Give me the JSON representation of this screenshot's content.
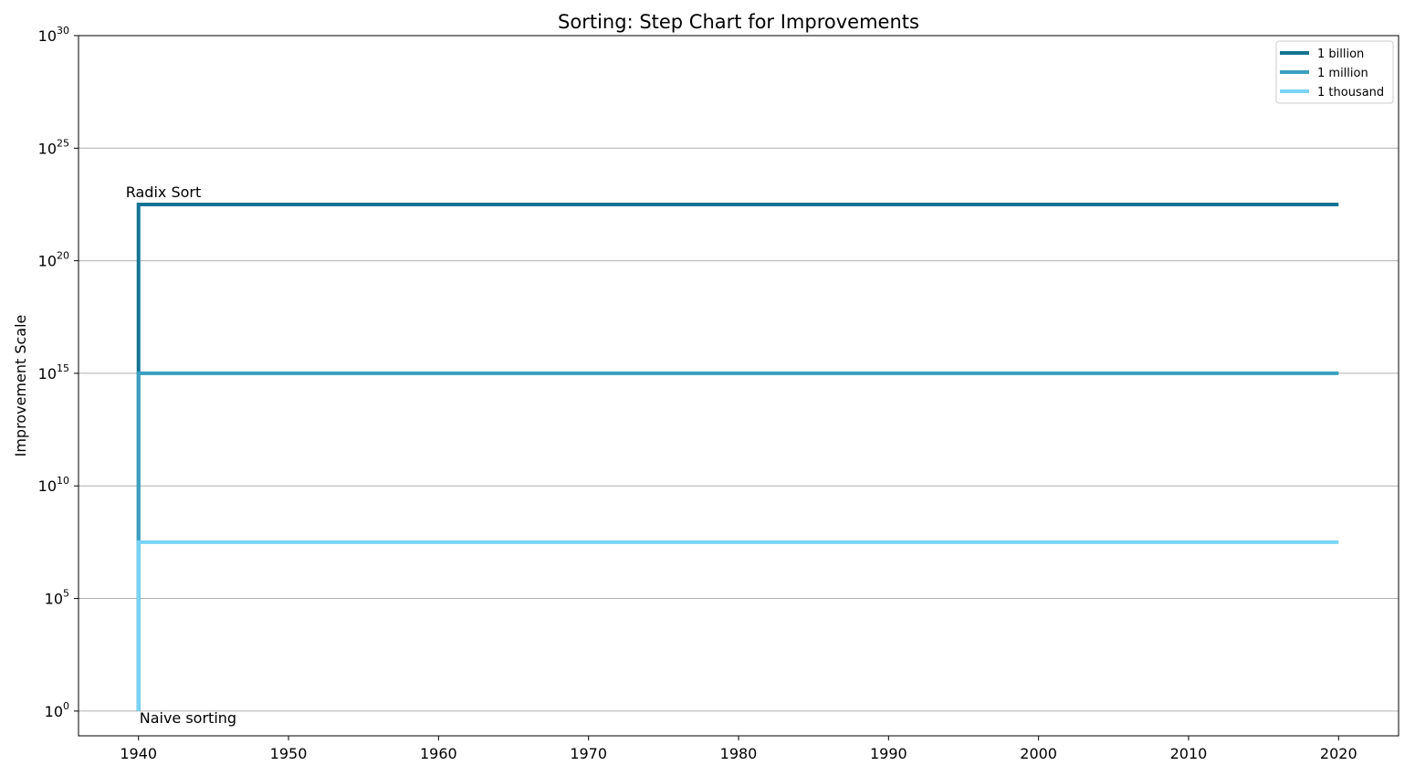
{
  "chart_data": {
    "type": "line",
    "step": true,
    "title": "Sorting: Step Chart for Improvements",
    "xlabel": "",
    "ylabel": "Improvement Scale",
    "xlim": [
      1936,
      2024
    ],
    "x_ticks": [
      1940,
      1950,
      1960,
      1970,
      1980,
      1990,
      2000,
      2010,
      2020
    ],
    "y_scale": "log",
    "ylim_exp": [
      -1.1,
      30
    ],
    "y_tick_exponents": [
      0,
      5,
      10,
      15,
      20,
      25,
      30
    ],
    "y_tick_base": "10",
    "grid": "horizontal",
    "legend_position": "top-right",
    "series": [
      {
        "name": "1 billion",
        "color": "#147494",
        "points": [
          {
            "x": 1940,
            "y_exp": 0
          },
          {
            "x": 1940,
            "y_exp": 22.5
          },
          {
            "x": 2020,
            "y_exp": 22.5
          }
        ]
      },
      {
        "name": "1 million",
        "color": "#3ba0bf",
        "points": [
          {
            "x": 1940,
            "y_exp": 0
          },
          {
            "x": 1940,
            "y_exp": 15
          },
          {
            "x": 2020,
            "y_exp": 15
          }
        ]
      },
      {
        "name": "1 thousand",
        "color": "#7ad4f5",
        "points": [
          {
            "x": 1940,
            "y_exp": 0
          },
          {
            "x": 1940,
            "y_exp": 7.5
          },
          {
            "x": 2020,
            "y_exp": 7.5
          }
        ]
      }
    ],
    "annotations": [
      {
        "text": "Radix Sort",
        "x": 1940,
        "y_exp": 22.5,
        "anchor": "above"
      },
      {
        "text": "Naive sorting",
        "x": 1940,
        "y_exp": 0,
        "anchor": "below"
      }
    ]
  }
}
